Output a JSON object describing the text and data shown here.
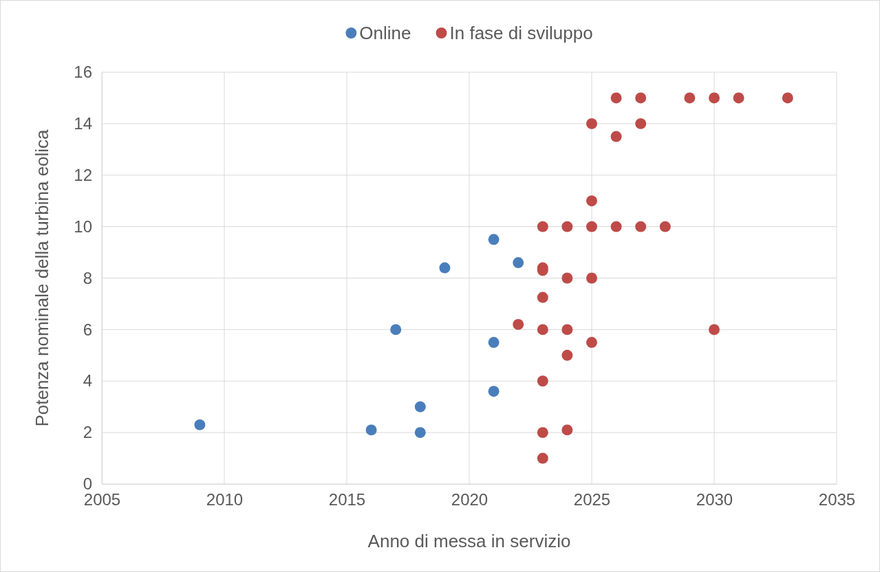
{
  "chart_data": {
    "type": "scatter",
    "xlabel": "Anno di messa in servizio",
    "ylabel": "Potenza nominale della turbina eolica",
    "xlim": [
      2005,
      2035
    ],
    "xticks": [
      2005,
      2010,
      2015,
      2020,
      2025,
      2030,
      2035
    ],
    "ylim": [
      0,
      16
    ],
    "yticks": [
      0,
      2,
      4,
      6,
      8,
      10,
      12,
      14,
      16
    ],
    "grid": true,
    "legend": "top",
    "marker": "circle",
    "series": [
      {
        "name": "Online",
        "color": "#4a7ebb",
        "x": [
          2009,
          2016,
          2017,
          2018,
          2018,
          2019,
          2021,
          2021,
          2021,
          2022
        ],
        "values": [
          2.3,
          2.1,
          6,
          3,
          2,
          8.4,
          9.5,
          5.5,
          3.6,
          8.6
        ]
      },
      {
        "name": "In fase di sviluppo",
        "color": "#be4b48",
        "x": [
          2022,
          2023,
          2023,
          2023,
          2023,
          2023,
          2023,
          2023,
          2023,
          2024,
          2024,
          2024,
          2024,
          2024,
          2025,
          2025,
          2025,
          2025,
          2025,
          2026,
          2026,
          2026,
          2027,
          2027,
          2027,
          2028,
          2029,
          2030,
          2030,
          2031,
          2033
        ],
        "values": [
          6.2,
          10,
          8.4,
          8.3,
          7.25,
          6,
          4,
          2,
          1,
          10,
          8,
          6,
          5,
          2.1,
          14,
          11,
          10,
          8,
          5.5,
          15,
          13.5,
          10,
          15,
          14,
          10,
          10,
          15,
          15,
          6,
          15,
          15
        ]
      }
    ]
  }
}
